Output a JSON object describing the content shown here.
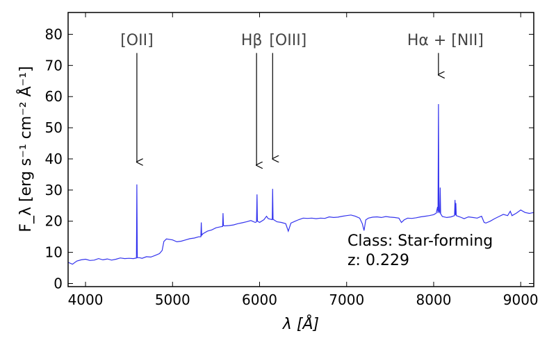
{
  "chart_data": {
    "type": "line",
    "title": "",
    "xlabel": "λ [Å]",
    "ylabel": "F_λ [erg s⁻¹ cm⁻² Å⁻¹]",
    "xlim": [
      3800,
      9150
    ],
    "ylim": [
      -1,
      87
    ],
    "x_ticks": [
      4000,
      5000,
      6000,
      7000,
      8000,
      9000
    ],
    "y_ticks": [
      0,
      10,
      20,
      30,
      40,
      50,
      60,
      70,
      80
    ],
    "grid": false,
    "line_color": "#3333ee",
    "series": [
      {
        "values": [
          [
            3800,
            6.8
          ],
          [
            3850,
            6.2
          ],
          [
            3900,
            7.2
          ],
          [
            3950,
            7.6
          ],
          [
            4000,
            7.8
          ],
          [
            4050,
            7.4
          ],
          [
            4100,
            7.5
          ],
          [
            4150,
            8.0
          ],
          [
            4200,
            7.6
          ],
          [
            4250,
            7.9
          ],
          [
            4300,
            7.5
          ],
          [
            4350,
            7.8
          ],
          [
            4400,
            8.2
          ],
          [
            4450,
            8.0
          ],
          [
            4500,
            8.1
          ],
          [
            4550,
            8.0
          ],
          [
            4585,
            8.2
          ],
          [
            4590,
            31.8
          ],
          [
            4595,
            8.3
          ],
          [
            4620,
            8.3
          ],
          [
            4650,
            8.1
          ],
          [
            4700,
            8.6
          ],
          [
            4750,
            8.5
          ],
          [
            4800,
            9.0
          ],
          [
            4850,
            9.6
          ],
          [
            4880,
            10.6
          ],
          [
            4900,
            13.5
          ],
          [
            4930,
            14.3
          ],
          [
            5000,
            14.0
          ],
          [
            5050,
            13.4
          ],
          [
            5100,
            13.6
          ],
          [
            5150,
            14.0
          ],
          [
            5200,
            14.4
          ],
          [
            5250,
            14.6
          ],
          [
            5300,
            15.0
          ],
          [
            5325,
            15.0
          ],
          [
            5330,
            19.6
          ],
          [
            5335,
            15.5
          ],
          [
            5350,
            16.0
          ],
          [
            5400,
            16.8
          ],
          [
            5450,
            17.2
          ],
          [
            5500,
            17.9
          ],
          [
            5550,
            18.2
          ],
          [
            5575,
            18.3
          ],
          [
            5580,
            22.6
          ],
          [
            5585,
            18.6
          ],
          [
            5600,
            18.5
          ],
          [
            5650,
            18.6
          ],
          [
            5700,
            18.8
          ],
          [
            5750,
            19.2
          ],
          [
            5800,
            19.5
          ],
          [
            5850,
            19.8
          ],
          [
            5900,
            20.2
          ],
          [
            5950,
            19.6
          ],
          [
            5965,
            19.8
          ],
          [
            5970,
            28.6
          ],
          [
            5975,
            20.0
          ],
          [
            6000,
            19.6
          ],
          [
            6050,
            20.5
          ],
          [
            6080,
            21.6
          ],
          [
            6100,
            20.8
          ],
          [
            6145,
            20.5
          ],
          [
            6150,
            30.4
          ],
          [
            6155,
            20.6
          ],
          [
            6200,
            19.8
          ],
          [
            6250,
            19.6
          ],
          [
            6300,
            19.2
          ],
          [
            6330,
            16.8
          ],
          [
            6360,
            19.4
          ],
          [
            6400,
            19.9
          ],
          [
            6450,
            20.5
          ],
          [
            6500,
            21.0
          ],
          [
            6550,
            20.9
          ],
          [
            6600,
            21.0
          ],
          [
            6650,
            20.8
          ],
          [
            6700,
            21.0
          ],
          [
            6750,
            20.9
          ],
          [
            6800,
            21.4
          ],
          [
            6850,
            21.2
          ],
          [
            6900,
            21.3
          ],
          [
            6950,
            21.6
          ],
          [
            7000,
            21.8
          ],
          [
            7050,
            22.0
          ],
          [
            7100,
            21.6
          ],
          [
            7150,
            21.0
          ],
          [
            7180,
            19.2
          ],
          [
            7200,
            17.0
          ],
          [
            7220,
            20.4
          ],
          [
            7250,
            21.0
          ],
          [
            7300,
            21.3
          ],
          [
            7350,
            21.4
          ],
          [
            7400,
            21.2
          ],
          [
            7450,
            21.5
          ],
          [
            7500,
            21.3
          ],
          [
            7550,
            21.2
          ],
          [
            7600,
            21.0
          ],
          [
            7630,
            19.6
          ],
          [
            7660,
            20.4
          ],
          [
            7700,
            21.0
          ],
          [
            7750,
            20.9
          ],
          [
            7800,
            21.1
          ],
          [
            7850,
            21.4
          ],
          [
            7900,
            21.6
          ],
          [
            7950,
            21.8
          ],
          [
            8000,
            22.1
          ],
          [
            8030,
            22.6
          ],
          [
            8045,
            24.6
          ],
          [
            8050,
            22.6
          ],
          [
            8055,
            57.6
          ],
          [
            8060,
            23.2
          ],
          [
            8070,
            22.8
          ],
          [
            8075,
            30.8
          ],
          [
            8080,
            22.4
          ],
          [
            8100,
            21.5
          ],
          [
            8150,
            21.2
          ],
          [
            8200,
            21.4
          ],
          [
            8240,
            21.8
          ],
          [
            8245,
            26.8
          ],
          [
            8250,
            22.0
          ],
          [
            8255,
            25.8
          ],
          [
            8260,
            21.8
          ],
          [
            8300,
            21.4
          ],
          [
            8350,
            20.8
          ],
          [
            8400,
            21.4
          ],
          [
            8450,
            21.2
          ],
          [
            8500,
            21.0
          ],
          [
            8550,
            21.6
          ],
          [
            8580,
            19.6
          ],
          [
            8600,
            19.4
          ],
          [
            8650,
            20.0
          ],
          [
            8700,
            20.8
          ],
          [
            8750,
            21.5
          ],
          [
            8800,
            22.2
          ],
          [
            8850,
            21.8
          ],
          [
            8880,
            23.2
          ],
          [
            8900,
            21.8
          ],
          [
            8950,
            22.6
          ],
          [
            9000,
            23.6
          ],
          [
            9050,
            22.8
          ],
          [
            9100,
            22.5
          ],
          [
            9150,
            22.8
          ]
        ]
      }
    ],
    "annotations": [
      {
        "label": "[OII]",
        "x": 4590,
        "arrow_from": 74,
        "arrow_to": 39
      },
      {
        "label": "Hβ",
        "x": 5965,
        "arrow_from": 74,
        "arrow_to": 38
      },
      {
        "label": "[OIII]",
        "x": 6150,
        "arrow_from": 74,
        "arrow_to": 40
      },
      {
        "label": "Hα + [NII]",
        "x": 8055,
        "arrow_from": 74,
        "arrow_to": 67
      }
    ],
    "info": {
      "class_text": "Class: Star-forming",
      "z_text": "z: 0.229"
    }
  }
}
